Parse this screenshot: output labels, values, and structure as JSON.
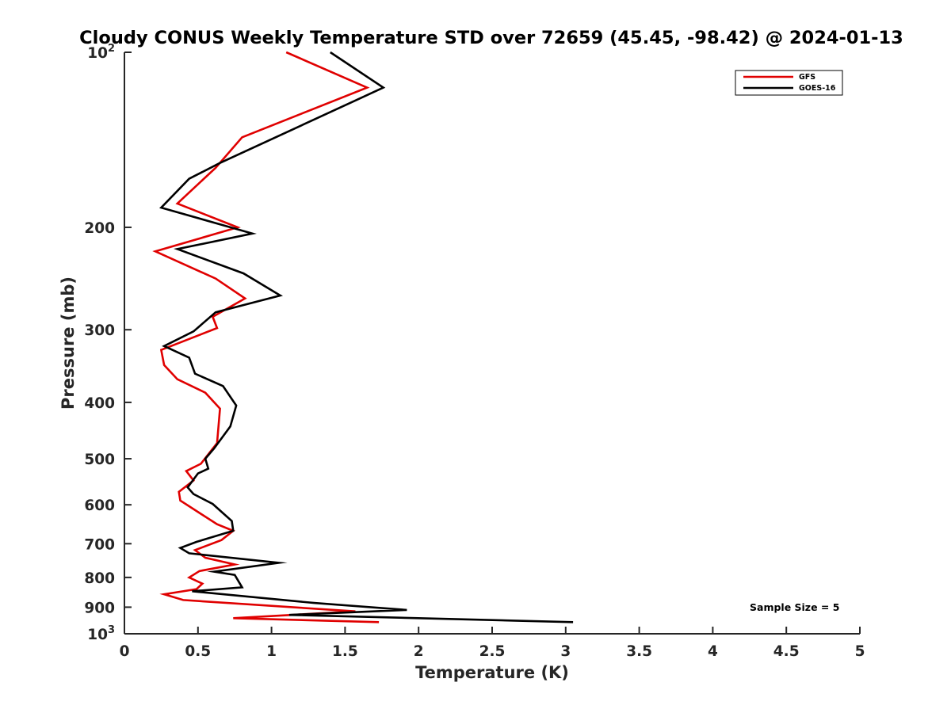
{
  "chart_data": {
    "type": "line",
    "title": "Cloudy CONUS Weekly Temperature STD over 72659 (45.45, -98.42) @ 2024-01-13",
    "xlabel": "Temperature (K)",
    "ylabel": "Pressure (mb)",
    "xlim": [
      0,
      5
    ],
    "ylim": [
      100,
      1000
    ],
    "y_scale": "log",
    "y_reversed": true,
    "grid": false,
    "legend_position": "top-right",
    "x_ticks": [
      "0",
      "0.5",
      "1",
      "1.5",
      "2",
      "2.5",
      "3",
      "3.5",
      "4",
      "4.5",
      "5"
    ],
    "y_ticks": [
      {
        "value": 100,
        "base": "10",
        "exp": "2"
      },
      {
        "value": 200,
        "label": "200"
      },
      {
        "value": 300,
        "label": "300"
      },
      {
        "value": 400,
        "label": "400"
      },
      {
        "value": 500,
        "label": "500"
      },
      {
        "value": 600,
        "label": "600"
      },
      {
        "value": 700,
        "label": "700"
      },
      {
        "value": 800,
        "label": "800"
      },
      {
        "value": 900,
        "label": "900"
      },
      {
        "value": 1000,
        "base": "10",
        "exp": "3"
      }
    ],
    "annotation": "Sample Size = 5",
    "series": [
      {
        "name": "GFS",
        "color": "#e00000",
        "points": [
          [
            1.1,
            100
          ],
          [
            1.65,
            115
          ],
          [
            0.8,
            140
          ],
          [
            0.62,
            158
          ],
          [
            0.36,
            182
          ],
          [
            0.77,
            200
          ],
          [
            0.21,
            220
          ],
          [
            0.62,
            245
          ],
          [
            0.82,
            265
          ],
          [
            0.6,
            285
          ],
          [
            0.63,
            298
          ],
          [
            0.25,
            325
          ],
          [
            0.27,
            345
          ],
          [
            0.36,
            365
          ],
          [
            0.55,
            385
          ],
          [
            0.65,
            410
          ],
          [
            0.63,
            470
          ],
          [
            0.52,
            510
          ],
          [
            0.42,
            525
          ],
          [
            0.47,
            545
          ],
          [
            0.37,
            570
          ],
          [
            0.38,
            590
          ],
          [
            0.52,
            622
          ],
          [
            0.63,
            648
          ],
          [
            0.74,
            665
          ],
          [
            0.66,
            690
          ],
          [
            0.48,
            718
          ],
          [
            0.55,
            740
          ],
          [
            0.75,
            760
          ],
          [
            0.51,
            780
          ],
          [
            0.44,
            800
          ],
          [
            0.53,
            820
          ],
          [
            0.49,
            838
          ],
          [
            0.27,
            855
          ],
          [
            0.4,
            875
          ],
          [
            1.57,
            915
          ],
          [
            0.74,
            940
          ],
          [
            1.73,
            955
          ]
        ]
      },
      {
        "name": "GOES-16",
        "color": "#000000",
        "points": [
          [
            1.4,
            100
          ],
          [
            1.76,
            115
          ],
          [
            0.65,
            155
          ],
          [
            0.44,
            165
          ],
          [
            0.25,
            185
          ],
          [
            0.87,
            205
          ],
          [
            0.36,
            218
          ],
          [
            0.81,
            240
          ],
          [
            1.06,
            262
          ],
          [
            0.62,
            280
          ],
          [
            0.47,
            302
          ],
          [
            0.27,
            320
          ],
          [
            0.44,
            335
          ],
          [
            0.48,
            357
          ],
          [
            0.67,
            375
          ],
          [
            0.76,
            405
          ],
          [
            0.72,
            440
          ],
          [
            0.61,
            480
          ],
          [
            0.55,
            500
          ],
          [
            0.57,
            520
          ],
          [
            0.5,
            530
          ],
          [
            0.43,
            560
          ],
          [
            0.47,
            575
          ],
          [
            0.6,
            598
          ],
          [
            0.73,
            640
          ],
          [
            0.74,
            665
          ],
          [
            0.49,
            695
          ],
          [
            0.38,
            712
          ],
          [
            0.44,
            727
          ],
          [
            1.05,
            755
          ],
          [
            0.61,
            782
          ],
          [
            0.75,
            792
          ],
          [
            0.8,
            832
          ],
          [
            0.46,
            845
          ],
          [
            1.29,
            885
          ],
          [
            1.92,
            910
          ],
          [
            1.12,
            928
          ],
          [
            3.05,
            955
          ]
        ]
      }
    ]
  }
}
